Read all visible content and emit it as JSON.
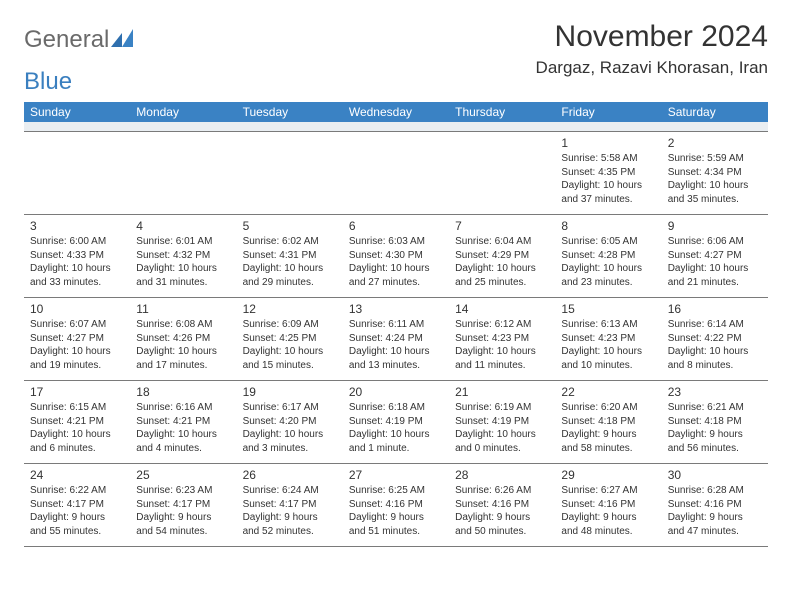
{
  "logo": {
    "general": "General",
    "blue": "Blue"
  },
  "title": "November 2024",
  "location": "Dargaz, Razavi Khorasan, Iran",
  "weekdays": [
    "Sunday",
    "Monday",
    "Tuesday",
    "Wednesday",
    "Thursday",
    "Friday",
    "Saturday"
  ],
  "colors": {
    "header_bg": "#3a82c4",
    "header_text": "#ffffff",
    "spacer_bg": "#e9eef2",
    "border": "#7a7a7a",
    "text": "#333333",
    "logo_gray": "#6a6a6a",
    "logo_blue": "#3a7fbf"
  },
  "weeks": [
    [
      {
        "n": "",
        "sr": "",
        "ss": "",
        "dl": ""
      },
      {
        "n": "",
        "sr": "",
        "ss": "",
        "dl": ""
      },
      {
        "n": "",
        "sr": "",
        "ss": "",
        "dl": ""
      },
      {
        "n": "",
        "sr": "",
        "ss": "",
        "dl": ""
      },
      {
        "n": "",
        "sr": "",
        "ss": "",
        "dl": ""
      },
      {
        "n": "1",
        "sr": "Sunrise: 5:58 AM",
        "ss": "Sunset: 4:35 PM",
        "dl": "Daylight: 10 hours and 37 minutes."
      },
      {
        "n": "2",
        "sr": "Sunrise: 5:59 AM",
        "ss": "Sunset: 4:34 PM",
        "dl": "Daylight: 10 hours and 35 minutes."
      }
    ],
    [
      {
        "n": "3",
        "sr": "Sunrise: 6:00 AM",
        "ss": "Sunset: 4:33 PM",
        "dl": "Daylight: 10 hours and 33 minutes."
      },
      {
        "n": "4",
        "sr": "Sunrise: 6:01 AM",
        "ss": "Sunset: 4:32 PM",
        "dl": "Daylight: 10 hours and 31 minutes."
      },
      {
        "n": "5",
        "sr": "Sunrise: 6:02 AM",
        "ss": "Sunset: 4:31 PM",
        "dl": "Daylight: 10 hours and 29 minutes."
      },
      {
        "n": "6",
        "sr": "Sunrise: 6:03 AM",
        "ss": "Sunset: 4:30 PM",
        "dl": "Daylight: 10 hours and 27 minutes."
      },
      {
        "n": "7",
        "sr": "Sunrise: 6:04 AM",
        "ss": "Sunset: 4:29 PM",
        "dl": "Daylight: 10 hours and 25 minutes."
      },
      {
        "n": "8",
        "sr": "Sunrise: 6:05 AM",
        "ss": "Sunset: 4:28 PM",
        "dl": "Daylight: 10 hours and 23 minutes."
      },
      {
        "n": "9",
        "sr": "Sunrise: 6:06 AM",
        "ss": "Sunset: 4:27 PM",
        "dl": "Daylight: 10 hours and 21 minutes."
      }
    ],
    [
      {
        "n": "10",
        "sr": "Sunrise: 6:07 AM",
        "ss": "Sunset: 4:27 PM",
        "dl": "Daylight: 10 hours and 19 minutes."
      },
      {
        "n": "11",
        "sr": "Sunrise: 6:08 AM",
        "ss": "Sunset: 4:26 PM",
        "dl": "Daylight: 10 hours and 17 minutes."
      },
      {
        "n": "12",
        "sr": "Sunrise: 6:09 AM",
        "ss": "Sunset: 4:25 PM",
        "dl": "Daylight: 10 hours and 15 minutes."
      },
      {
        "n": "13",
        "sr": "Sunrise: 6:11 AM",
        "ss": "Sunset: 4:24 PM",
        "dl": "Daylight: 10 hours and 13 minutes."
      },
      {
        "n": "14",
        "sr": "Sunrise: 6:12 AM",
        "ss": "Sunset: 4:23 PM",
        "dl": "Daylight: 10 hours and 11 minutes."
      },
      {
        "n": "15",
        "sr": "Sunrise: 6:13 AM",
        "ss": "Sunset: 4:23 PM",
        "dl": "Daylight: 10 hours and 10 minutes."
      },
      {
        "n": "16",
        "sr": "Sunrise: 6:14 AM",
        "ss": "Sunset: 4:22 PM",
        "dl": "Daylight: 10 hours and 8 minutes."
      }
    ],
    [
      {
        "n": "17",
        "sr": "Sunrise: 6:15 AM",
        "ss": "Sunset: 4:21 PM",
        "dl": "Daylight: 10 hours and 6 minutes."
      },
      {
        "n": "18",
        "sr": "Sunrise: 6:16 AM",
        "ss": "Sunset: 4:21 PM",
        "dl": "Daylight: 10 hours and 4 minutes."
      },
      {
        "n": "19",
        "sr": "Sunrise: 6:17 AM",
        "ss": "Sunset: 4:20 PM",
        "dl": "Daylight: 10 hours and 3 minutes."
      },
      {
        "n": "20",
        "sr": "Sunrise: 6:18 AM",
        "ss": "Sunset: 4:19 PM",
        "dl": "Daylight: 10 hours and 1 minute."
      },
      {
        "n": "21",
        "sr": "Sunrise: 6:19 AM",
        "ss": "Sunset: 4:19 PM",
        "dl": "Daylight: 10 hours and 0 minutes."
      },
      {
        "n": "22",
        "sr": "Sunrise: 6:20 AM",
        "ss": "Sunset: 4:18 PM",
        "dl": "Daylight: 9 hours and 58 minutes."
      },
      {
        "n": "23",
        "sr": "Sunrise: 6:21 AM",
        "ss": "Sunset: 4:18 PM",
        "dl": "Daylight: 9 hours and 56 minutes."
      }
    ],
    [
      {
        "n": "24",
        "sr": "Sunrise: 6:22 AM",
        "ss": "Sunset: 4:17 PM",
        "dl": "Daylight: 9 hours and 55 minutes."
      },
      {
        "n": "25",
        "sr": "Sunrise: 6:23 AM",
        "ss": "Sunset: 4:17 PM",
        "dl": "Daylight: 9 hours and 54 minutes."
      },
      {
        "n": "26",
        "sr": "Sunrise: 6:24 AM",
        "ss": "Sunset: 4:17 PM",
        "dl": "Daylight: 9 hours and 52 minutes."
      },
      {
        "n": "27",
        "sr": "Sunrise: 6:25 AM",
        "ss": "Sunset: 4:16 PM",
        "dl": "Daylight: 9 hours and 51 minutes."
      },
      {
        "n": "28",
        "sr": "Sunrise: 6:26 AM",
        "ss": "Sunset: 4:16 PM",
        "dl": "Daylight: 9 hours and 50 minutes."
      },
      {
        "n": "29",
        "sr": "Sunrise: 6:27 AM",
        "ss": "Sunset: 4:16 PM",
        "dl": "Daylight: 9 hours and 48 minutes."
      },
      {
        "n": "30",
        "sr": "Sunrise: 6:28 AM",
        "ss": "Sunset: 4:16 PM",
        "dl": "Daylight: 9 hours and 47 minutes."
      }
    ]
  ]
}
